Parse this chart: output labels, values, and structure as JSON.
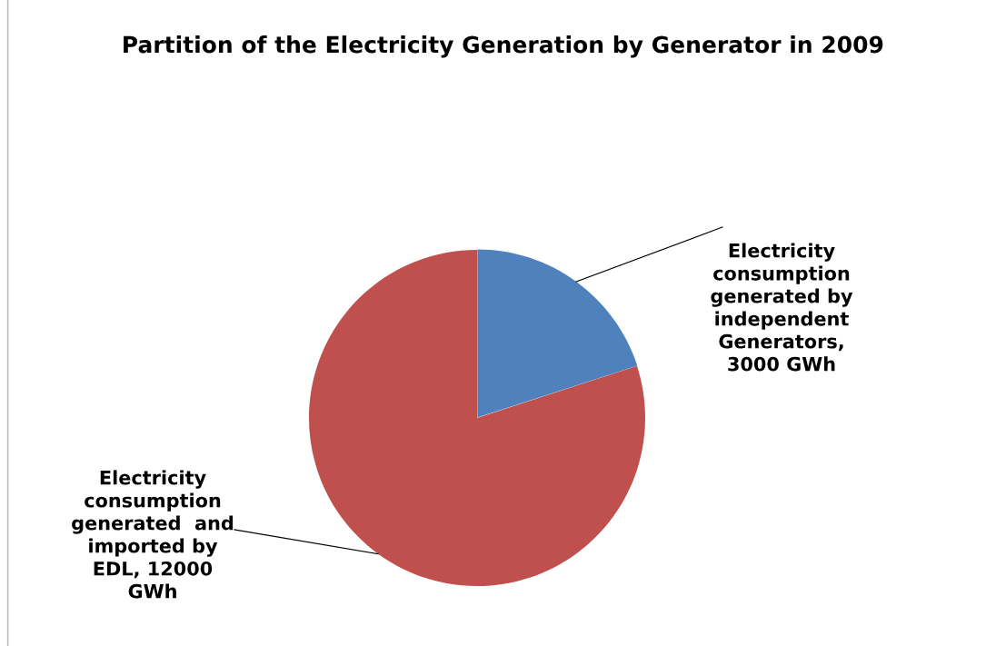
{
  "chart_data": {
    "type": "pie",
    "title": "Partition of the Electricity Generation by Generator in 2009",
    "categories": [
      "Electricity\nconsumption\ngenerated by\nindependent\nGenerators,\n3000 GWh",
      "Electricity\nconsumption\ngenerated  and\nimported by\nEDL, 12000\nGWh"
    ],
    "values": [
      3000,
      12000
    ],
    "colors": [
      "#4f81bd",
      "#c0504d"
    ],
    "legend": false
  }
}
